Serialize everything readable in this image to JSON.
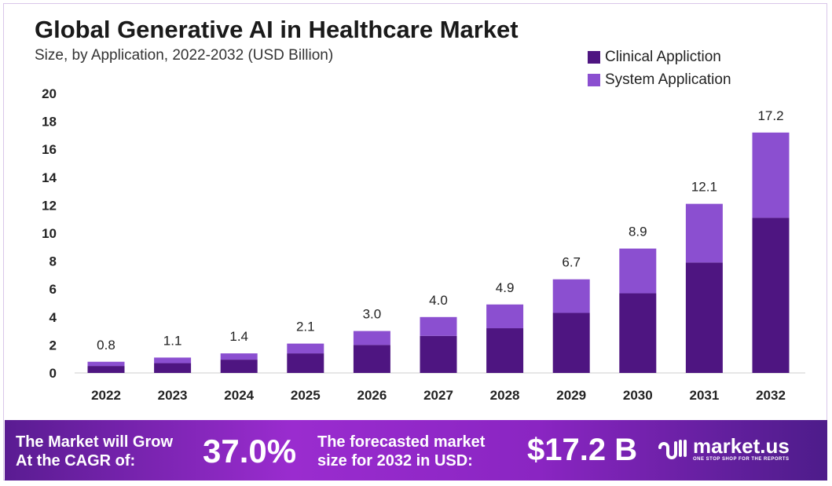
{
  "chart_data": {
    "type": "bar",
    "stacked": true,
    "title": "Global Generative AI in Healthcare Market",
    "subtitle": "Size, by Application, 2022-2032 (USD Billion)",
    "categories": [
      "2022",
      "2023",
      "2024",
      "2025",
      "2026",
      "2027",
      "2028",
      "2029",
      "2030",
      "2031",
      "2032"
    ],
    "series": [
      {
        "name": "Clinical Appliction",
        "color": "#4e1581",
        "values": [
          0.5,
          0.7,
          0.95,
          1.4,
          2.0,
          2.65,
          3.2,
          4.3,
          5.7,
          7.9,
          11.1
        ]
      },
      {
        "name": "System Application",
        "color": "#8b4fd0",
        "values": [
          0.3,
          0.4,
          0.45,
          0.7,
          1.0,
          1.35,
          1.7,
          2.4,
          3.2,
          4.2,
          6.1
        ]
      }
    ],
    "totals": [
      "0.8",
      "1.1",
      "1.4",
      "2.1",
      "3.0",
      "4.0",
      "4.9",
      "6.7",
      "8.9",
      "12.1",
      "17.2"
    ],
    "ylim": [
      0,
      20
    ],
    "yticks": [
      "0",
      "2",
      "4",
      "6",
      "8",
      "10",
      "12",
      "14",
      "16",
      "18",
      "20"
    ],
    "grid": false,
    "legend": "top-right"
  },
  "footer": {
    "cagr_label_1": "The Market will Grow",
    "cagr_label_2": "At the CAGR of:",
    "cagr_value": "37.0%",
    "forecast_label_1": "The forecasted market",
    "forecast_label_2": "size for 2032 in USD:",
    "forecast_value": "$17.2 B",
    "logo_name": "market.us",
    "logo_tagline": "ONE STOP SHOP FOR THE REPORTS"
  }
}
